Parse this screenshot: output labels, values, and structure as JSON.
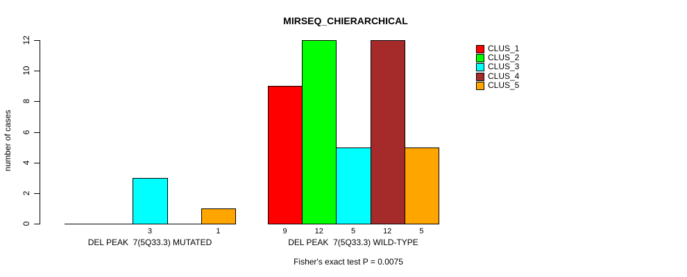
{
  "chart_data": {
    "type": "bar",
    "title": "MIRSEQ_CHIERARCHICAL",
    "ylabel": "number of cases",
    "ylim": [
      0,
      12
    ],
    "yticks": [
      0,
      2,
      4,
      6,
      8,
      10,
      12
    ],
    "grid": false,
    "legend_position": "right-outside-top",
    "categories": [
      "DEL PEAK  7(5Q33.3) MUTATED",
      "DEL PEAK  7(5Q33.3) WILD-TYPE"
    ],
    "series": [
      {
        "name": "CLUS_1",
        "color": "#FF0000",
        "values": [
          0,
          9
        ]
      },
      {
        "name": "CLUS_2",
        "color": "#00FF00",
        "values": [
          0,
          12
        ]
      },
      {
        "name": "CLUS_3",
        "color": "#00FFFF",
        "values": [
          3,
          5
        ]
      },
      {
        "name": "CLUS_4",
        "color": "#A52A2A",
        "values": [
          0,
          12
        ]
      },
      {
        "name": "CLUS_5",
        "color": "#FFA500",
        "values": [
          1,
          5
        ]
      }
    ],
    "bar_value_labels": {
      "MUTATED": [
        null,
        null,
        3,
        null,
        1
      ],
      "WILD-TYPE": [
        9,
        12,
        5,
        12,
        5
      ]
    },
    "annotation": "Fisher's exact test P = 0.0075"
  },
  "colors": {
    "background": "#FFFFFF",
    "axis": "#000000",
    "text": "#000000"
  }
}
